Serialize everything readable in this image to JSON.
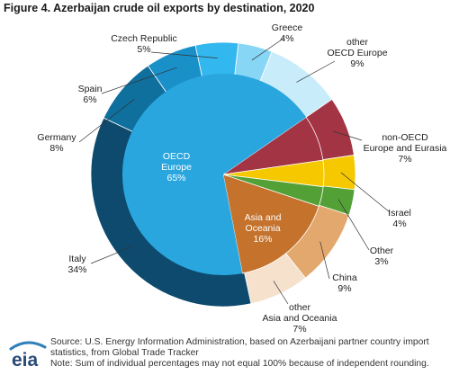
{
  "figure_title": "Figure 4. Azerbaijan crude oil exports by destination, 2020",
  "chart_data": {
    "type": "pie",
    "title": "Figure 4. Azerbaijan crude oil exports by destination, 2020",
    "inner_ring": [
      {
        "label": "OECD\nEurope",
        "value": 65,
        "display": "65%",
        "color": "#2aa6df"
      },
      {
        "label": "non-OECD\nEurope and Eurasia",
        "value": 7,
        "display": "7%",
        "color": "#a33444"
      },
      {
        "label": "Israel",
        "value": 4,
        "display": "4%",
        "color": "#f5c800"
      },
      {
        "label": "Other",
        "value": 3,
        "display": "3%",
        "color": "#53a036"
      },
      {
        "label": "Asia and\nOceania",
        "value": 16,
        "display": "16%",
        "color": "#c4722c"
      }
    ],
    "outer_ring": [
      {
        "label": "Greece",
        "value": 4,
        "display": "4%",
        "color": "#87d6f5"
      },
      {
        "label": "other\nOECD Europe",
        "value": 9,
        "display": "9%",
        "color": "#c9ecfb"
      },
      {
        "label": "non-OECD\nEurope and Eurasia",
        "value": 7,
        "display": "7%",
        "color": "#a33444"
      },
      {
        "label": "Israel",
        "value": 4,
        "display": "4%",
        "color": "#f5c800"
      },
      {
        "label": "Other",
        "value": 3,
        "display": "3%",
        "color": "#53a036"
      },
      {
        "label": "China",
        "value": 9,
        "display": "9%",
        "color": "#e3a86d"
      },
      {
        "label": "other\nAsia and Oceania",
        "value": 7,
        "display": "7%",
        "color": "#f5e1cc"
      },
      {
        "label": "Italy",
        "value": 34,
        "display": "34%",
        "color": "#0d4a6e"
      },
      {
        "label": "Germany",
        "value": 8,
        "display": "8%",
        "color": "#0f6f9d"
      },
      {
        "label": "Spain",
        "value": 6,
        "display": "6%",
        "color": "#1a90c8"
      },
      {
        "label": "Czech Republic",
        "value": 5,
        "display": "5%",
        "color": "#33b7ef"
      }
    ]
  },
  "footer": {
    "logo_text": "eia",
    "source_line1": "Source: U.S. Energy Information Administration, based on Azerbaijani partner country import",
    "source_line2": "statistics, from Global Trade Tracker",
    "note": "Note: Sum of individual percentages may not equal 100% because of independent rounding."
  }
}
